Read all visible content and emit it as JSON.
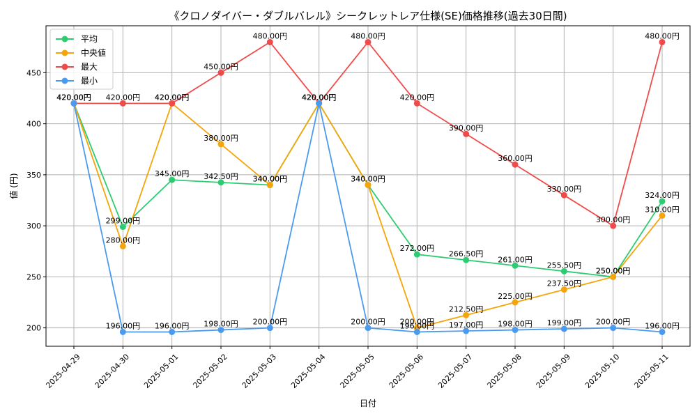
{
  "chart_data": {
    "type": "line",
    "title": "《クロノダイバー・ダブルバレル》シークレットレア仕様(SE)価格推移(過去30日間)",
    "xlabel": "日付",
    "ylabel": "値 (円)",
    "categories": [
      "2025-04-29",
      "2025-04-30",
      "2025-05-01",
      "2025-05-02",
      "2025-05-03",
      "2025-05-04",
      "2025-05-05",
      "2025-05-06",
      "2025-05-07",
      "2025-05-08",
      "2025-05-09",
      "2025-05-10",
      "2025-05-11"
    ],
    "ylim": [
      182,
      496
    ],
    "yticks": [
      200,
      250,
      300,
      350,
      400,
      450
    ],
    "grid": true,
    "legend_position": "top-left",
    "series": [
      {
        "name": "平均",
        "color": "#2ecc71",
        "values": [
          420,
          299,
          345,
          342.5,
          340,
          420,
          340,
          272,
          266.5,
          261,
          255.5,
          250,
          324
        ],
        "labels": [
          "420.00円",
          "299.00円",
          "345.00円",
          "342.50円",
          "340.00円",
          "420.00円",
          "340.00円",
          "272.00円",
          "266.50円",
          "261.00円",
          "255.50円",
          "250.00円",
          "324.00円"
        ]
      },
      {
        "name": "中央値",
        "color": "#f5a50a",
        "values": [
          420,
          280,
          420,
          380,
          340,
          420,
          340,
          200,
          212.5,
          225,
          237.5,
          250,
          310
        ],
        "labels": [
          "420.00円",
          "280.00円",
          "420.00円",
          "380.00円",
          "340.00円",
          "420.00円",
          "340.00円",
          "200.00円",
          "212.50円",
          "225.00円",
          "237.50円",
          "250.00円",
          "310.00円"
        ]
      },
      {
        "name": "最大",
        "color": "#f04b4b",
        "values": [
          420,
          420,
          420,
          450,
          480,
          420,
          480,
          420,
          390,
          360,
          330,
          300,
          480
        ],
        "labels": [
          "420.00円",
          "420.00円",
          "420.00円",
          "450.00円",
          "480.00円",
          "420.00円",
          "480.00円",
          "420.00円",
          "390.00円",
          "360.00円",
          "330.00円",
          "300.00円",
          "480.00円"
        ]
      },
      {
        "name": "最小",
        "color": "#4a9af0",
        "values": [
          420,
          196,
          196,
          198,
          200,
          420,
          200,
          196,
          197,
          198,
          199,
          200,
          196
        ],
        "labels": [
          "420.00円",
          "196.00円",
          "196.00円",
          "198.00円",
          "200.00円",
          "420.00円",
          "200.00円",
          "196.00円",
          "197.00円",
          "198.00円",
          "199.00円",
          "200.00円",
          "196.00円"
        ]
      }
    ]
  }
}
